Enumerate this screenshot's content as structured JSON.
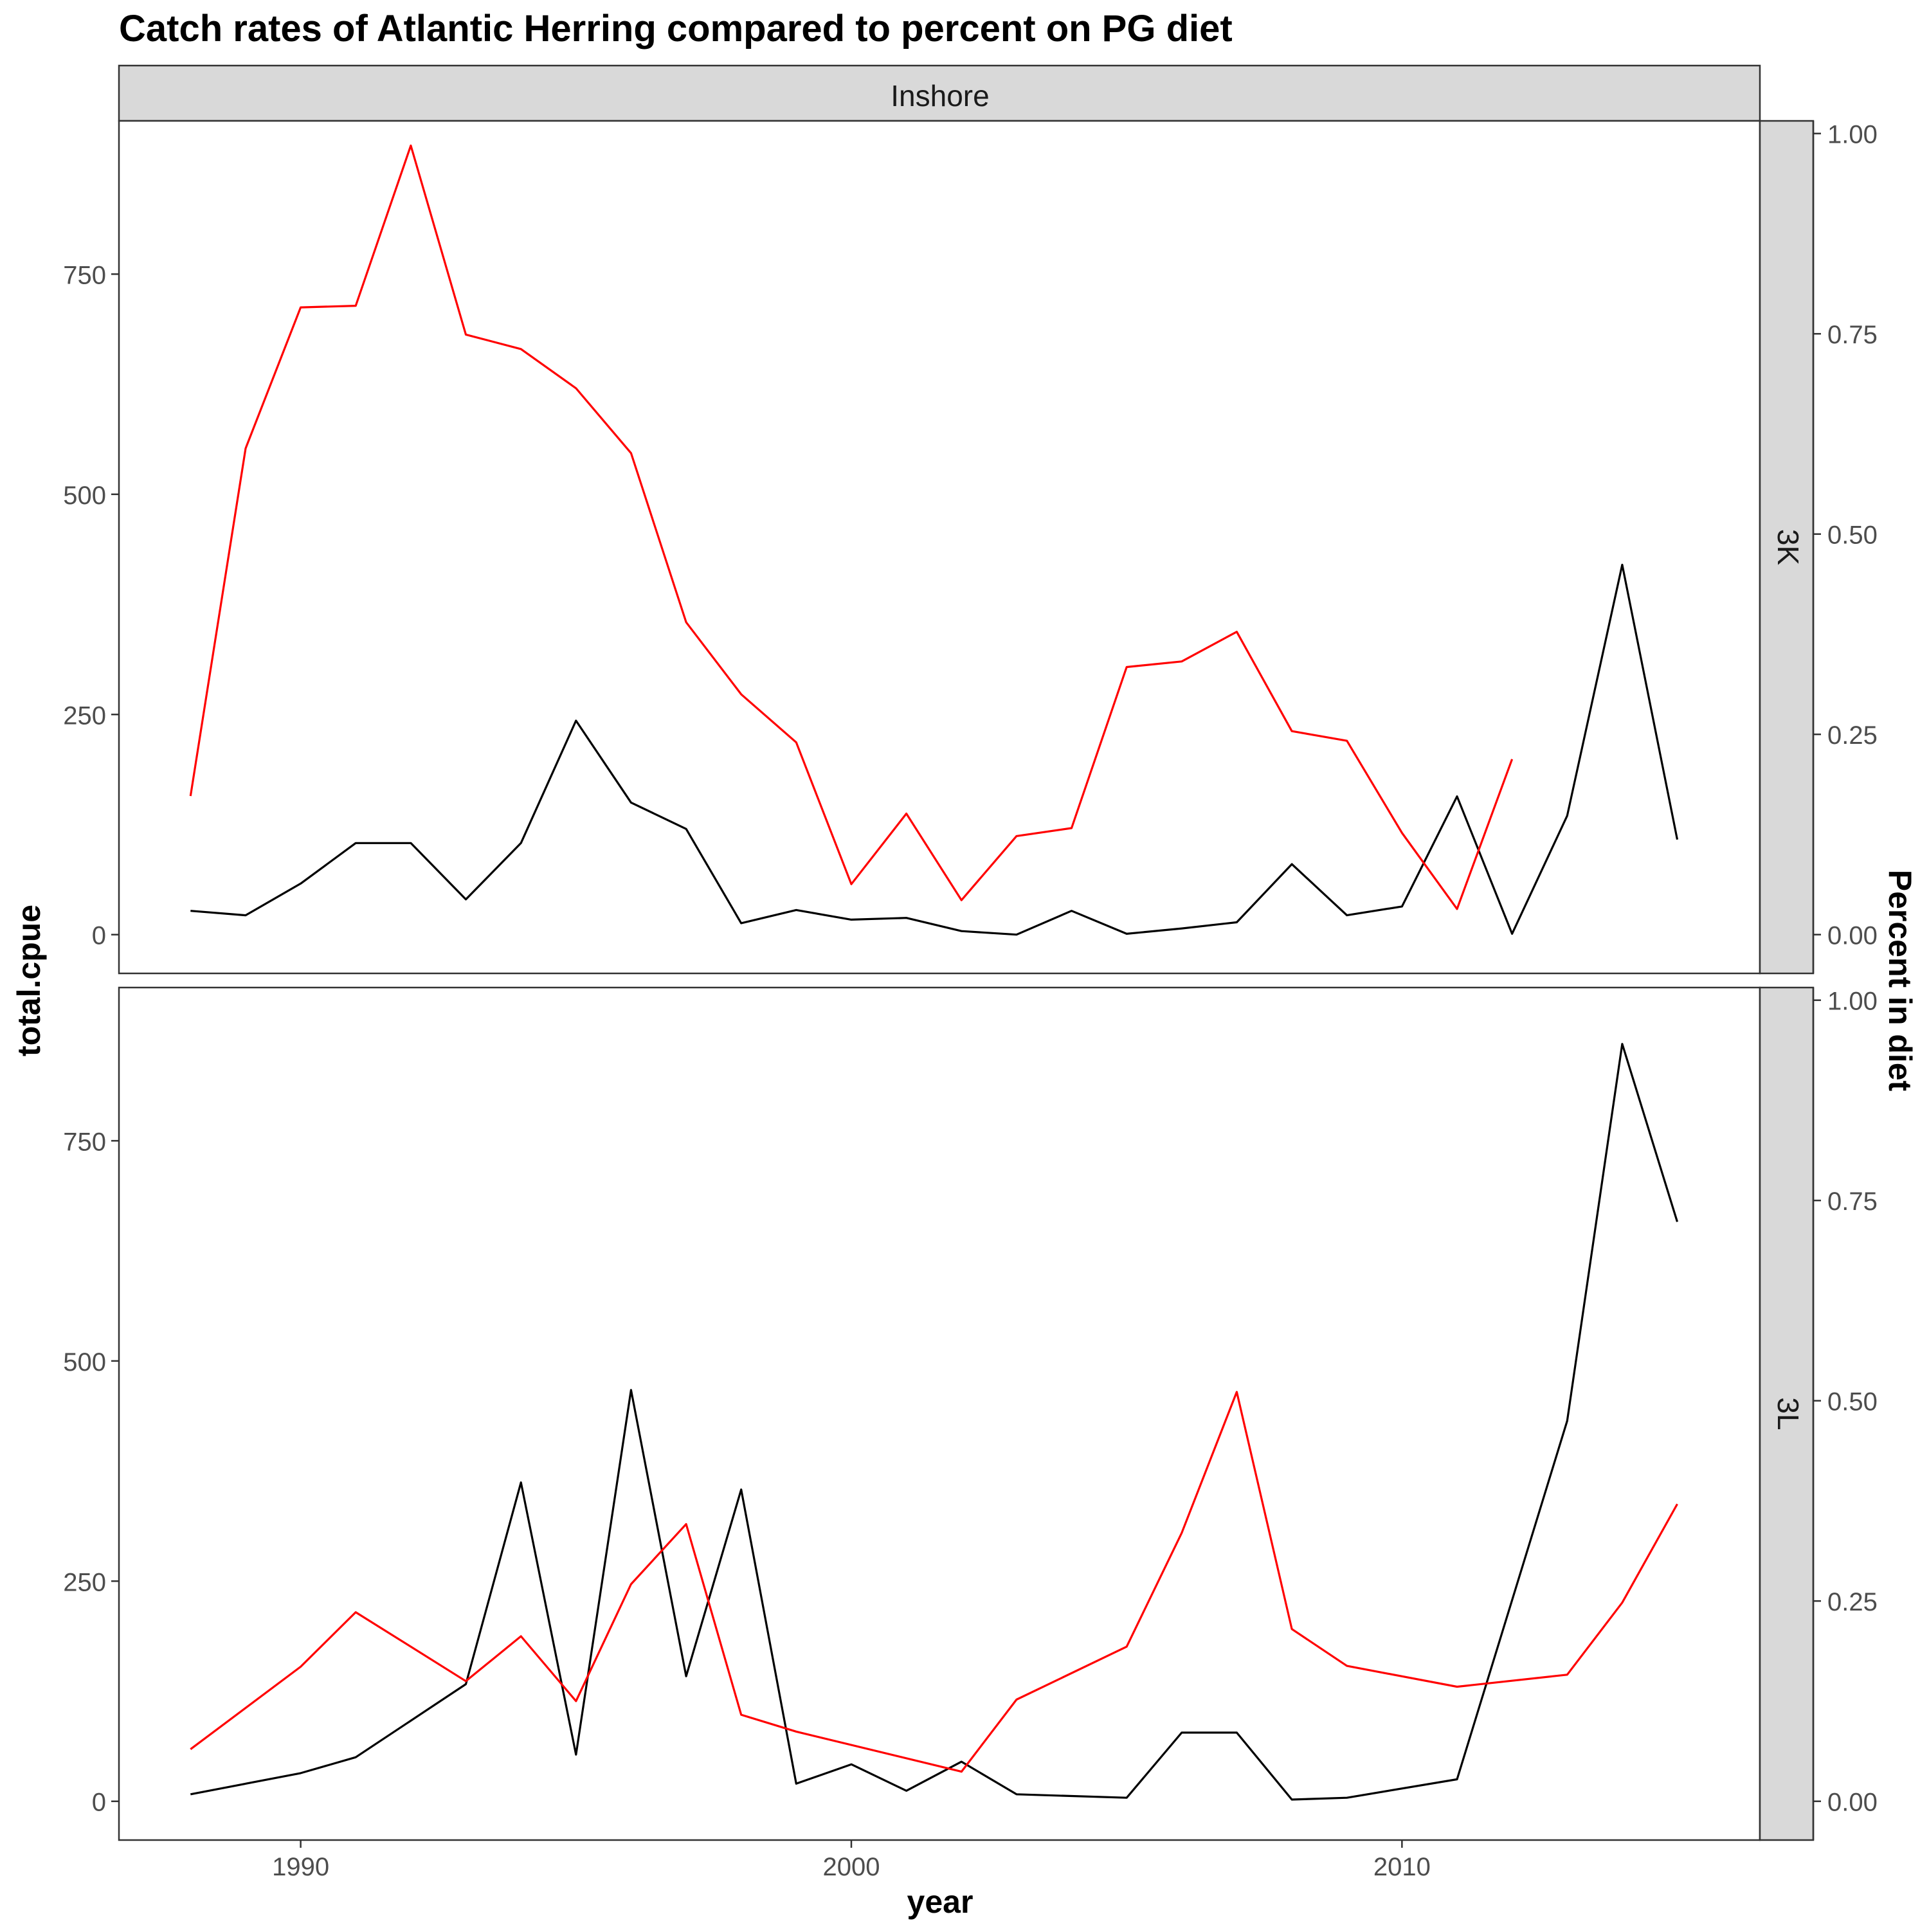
{
  "chart_data": {
    "type": "line",
    "title": "Catch rates of Atlantic Herring compared to percent on PG diet",
    "xlabel": "year",
    "ylabel": "total.cpue",
    "ylabel_right": "Percent in diet",
    "facet_column": "Inshore",
    "xlim": [
      1986.7,
      2016.5
    ],
    "x_ticks": [
      1990,
      2000,
      2010
    ],
    "ylim": [
      -44,
      924
    ],
    "y_ticks": [
      0,
      250,
      500,
      750
    ],
    "ylim_right": [
      -0.0484,
      1.0158
    ],
    "y_ticks_right": [
      "0.00",
      "0.25",
      "0.50",
      "0.75",
      "1.00"
    ],
    "grid": false,
    "legend": "none",
    "colors": {
      "total.cpue": "#000000",
      "Percent in diet": "#ff0000"
    },
    "panels": [
      {
        "strip": "3K",
        "series": [
          {
            "axis": "left",
            "color": "#000000",
            "x": [
              1988,
              1989,
              1990,
              1991,
              1992,
              1993,
              1994,
              1995,
              1996,
              1997,
              1998,
              1999,
              2000,
              2001,
              2002,
              2003,
              2004,
              2005,
              2006,
              2007,
              2008,
              2009,
              2010,
              2011,
              2012,
              2013,
              2014,
              2015
            ],
            "values": [
              27,
              22,
              58,
              104,
              104,
              40,
              104,
              243,
              150,
              120,
              13,
              28,
              17,
              19,
              4,
              0,
              27,
              1,
              7,
              14,
              80,
              22,
              32,
              157,
              1,
              135,
              420,
              108
            ]
          },
          {
            "axis": "right",
            "color": "#ff0000",
            "x": [
              1988,
              1989,
              1990,
              1991,
              1992,
              1993,
              1994,
              1995,
              1996,
              1997,
              1998,
              1999,
              2000,
              2001,
              2002,
              2003,
              2004,
              2005,
              2006,
              2007,
              2008,
              2009,
              2010,
              2011,
              2012
            ],
            "values": [
              0.173,
              0.607,
              0.783,
              0.785,
              0.985,
              0.749,
              0.731,
              0.682,
              0.601,
              0.39,
              0.3,
              0.24,
              0.063,
              0.151,
              0.043,
              0.123,
              0.133,
              0.334,
              0.341,
              0.378,
              0.254,
              0.242,
              0.127,
              0.032,
              0.219
            ]
          }
        ]
      },
      {
        "strip": "3L",
        "series": [
          {
            "axis": "left",
            "color": "#000000",
            "x": [
              1988,
              1990,
              1991,
              1993,
              1994,
              1995,
              1996,
              1997,
              1998,
              1999,
              2000,
              2001,
              2002,
              2003,
              2005,
              2006,
              2007,
              2008,
              2009,
              2011,
              2013,
              2014,
              2015
            ],
            "values": [
              8,
              32,
              50,
              133,
              362,
              53,
              467,
              142,
              354,
              20,
              42,
              12,
              45,
              8,
              4,
              78,
              78,
              2,
              4,
              25,
              432,
              860,
              658
            ]
          },
          {
            "axis": "right",
            "color": "#ff0000",
            "x": [
              1988,
              1990,
              1991,
              1993,
              1994,
              1995,
              1996,
              1997,
              1998,
              1999,
              2002,
              2003,
              2005,
              2006,
              2007,
              2008,
              2009,
              2011,
              2013,
              2014,
              2015
            ],
            "values": [
              0.065,
              0.168,
              0.236,
              0.15,
              0.206,
              0.125,
              0.271,
              0.346,
              0.108,
              0.087,
              0.037,
              0.127,
              0.193,
              0.335,
              0.511,
              0.215,
              0.169,
              0.143,
              0.158,
              0.248,
              0.371
            ]
          }
        ]
      }
    ]
  }
}
